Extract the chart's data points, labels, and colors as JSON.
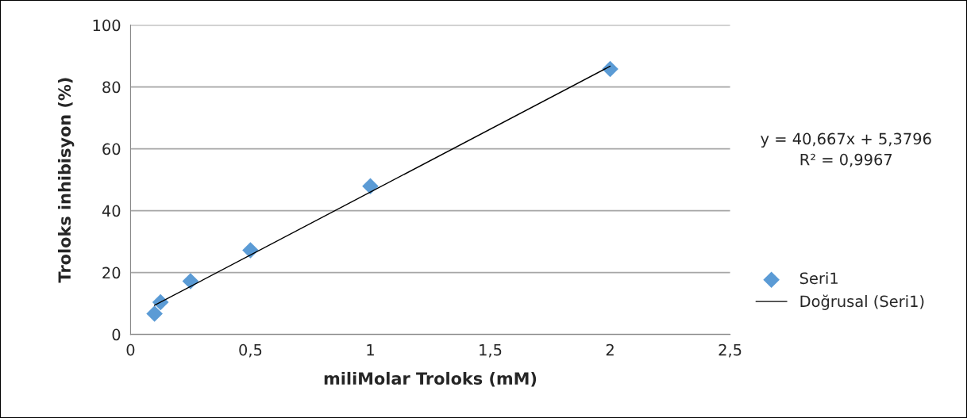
{
  "chart_data": {
    "type": "scatter",
    "xlabel": "miliMolar Troloks (mM)",
    "ylabel": "Troloks inhibisyon (%)",
    "series": [
      {
        "name": "Seri1",
        "color": "#5b9bd5",
        "marker": "diamond",
        "x": [
          0.1,
          0.125,
          0.25,
          0.5,
          1,
          2
        ],
        "values": [
          6.7,
          10.4,
          17.2,
          27.2,
          47.9,
          85.8
        ]
      },
      {
        "name": "Doğrusal (Seri1)",
        "type": "line",
        "color": "#000000",
        "marker": "none",
        "line_style": "solid",
        "x": [
          0.1,
          2
        ],
        "values": [
          9.4,
          86.7
        ]
      }
    ],
    "annotations": [
      "y = 40,667x + 5,3796\nR² = 0,9967"
    ],
    "xlim": [
      0,
      2.5
    ],
    "xticks": [
      0,
      {
        "value": 0.5,
        "label": "0,5"
      },
      1,
      {
        "value": 1.5,
        "label": "1,5"
      },
      2,
      {
        "value": 2.5,
        "label": "2,5"
      }
    ],
    "ylim": [
      0,
      100
    ],
    "yticks": [
      0,
      20,
      40,
      60,
      80,
      100
    ],
    "grid": "y",
    "legend": "right"
  }
}
